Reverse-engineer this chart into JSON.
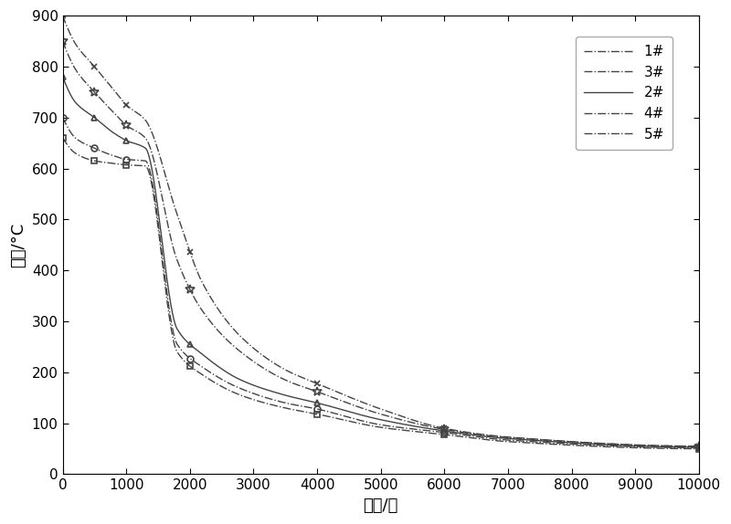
{
  "title": "",
  "xlabel": "时间/秒",
  "ylabel": "温度/°C",
  "xlim": [
    0,
    10000
  ],
  "ylim": [
    0,
    900
  ],
  "xticks": [
    0,
    1000,
    2000,
    3000,
    4000,
    5000,
    6000,
    7000,
    8000,
    9000,
    10000
  ],
  "yticks": [
    0,
    100,
    200,
    300,
    400,
    500,
    600,
    700,
    800,
    900
  ],
  "background_color": "#ffffff",
  "font_size_label": 13,
  "font_size_tick": 11,
  "font_size_legend": 11,
  "series": [
    {
      "label": "1#",
      "linestyle": "-.",
      "marker": "s",
      "markersize": 5,
      "marker_x": [
        0,
        500,
        1000,
        2000,
        4000,
        6000,
        10000
      ],
      "marker_y": [
        660,
        610,
        590,
        230,
        125,
        80,
        50
      ],
      "curve_params": {
        "T0": 660,
        "Tenv": 45,
        "k1": 0.0008,
        "t_trans": 1800,
        "k2": 0.0012
      }
    },
    {
      "label": "3#",
      "linestyle": "-.",
      "marker": "o",
      "markersize": 5,
      "marker_x": [
        0,
        500,
        1000,
        2000,
        4000,
        6000,
        10000
      ],
      "marker_y": [
        700,
        630,
        600,
        240,
        135,
        82,
        52
      ],
      "curve_params": {
        "T0": 700,
        "Tenv": 45,
        "k1": 0.0008,
        "t_trans": 1800,
        "k2": 0.0012
      }
    },
    {
      "label": "2#",
      "linestyle": "-",
      "marker": "^",
      "markersize": 6,
      "marker_x": [
        0,
        500,
        1000,
        2000,
        4000,
        6000,
        10000
      ],
      "marker_y": [
        780,
        660,
        610,
        270,
        145,
        85,
        53
      ],
      "curve_params": {
        "T0": 780,
        "Tenv": 45,
        "k1": 0.00075,
        "t_trans": 1800,
        "k2": 0.0012
      }
    },
    {
      "label": "4#",
      "linestyle": "-.",
      "marker": "$\\u2606$",
      "markersize": 7,
      "marker_x": [
        0,
        500,
        1000,
        2000,
        4000,
        6000,
        10000
      ],
      "marker_y": [
        850,
        710,
        650,
        390,
        160,
        88,
        55
      ],
      "curve_params": {
        "T0": 850,
        "Tenv": 45,
        "k1": 0.0006,
        "t_trans": 1800,
        "k2": 0.0011
      }
    },
    {
      "label": "5#",
      "linestyle": "-.",
      "marker": "x",
      "markersize": 6,
      "marker_x": [
        0,
        500,
        1000,
        2000,
        4000,
        6000,
        10000
      ],
      "marker_y": [
        900,
        760,
        680,
        480,
        175,
        90,
        55
      ],
      "curve_params": {
        "T0": 900,
        "Tenv": 45,
        "k1": 0.00055,
        "t_trans": 1800,
        "k2": 0.0011
      }
    }
  ]
}
